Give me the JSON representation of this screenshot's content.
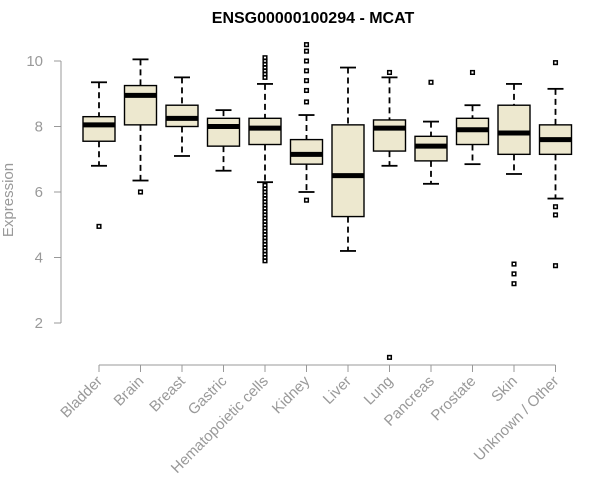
{
  "chart_data": {
    "type": "boxplot",
    "title": "ENSG00000100294 - MCAT",
    "xlabel": "",
    "ylabel": "Expression",
    "ylim": [
      0.6,
      11.0
    ],
    "yticks": [
      2,
      4,
      6,
      8,
      10
    ],
    "box_color": "#ede8cf",
    "categories": [
      "Bladder",
      "Brain",
      "Breast",
      "Gastric",
      "Hematopoietic cells",
      "Kidney",
      "Liver",
      "Lung",
      "Pancreas",
      "Prostate",
      "Skin",
      "Unknown / Other"
    ],
    "boxes": [
      {
        "name": "Bladder",
        "whisker_low": 6.8,
        "q1": 7.55,
        "median": 8.05,
        "q3": 8.3,
        "whisker_high": 9.35,
        "outliers": [
          4.95
        ]
      },
      {
        "name": "Brain",
        "whisker_low": 6.35,
        "q1": 8.05,
        "median": 8.95,
        "q3": 9.25,
        "whisker_high": 10.05,
        "outliers": [
          6.0
        ]
      },
      {
        "name": "Breast",
        "whisker_low": 7.1,
        "q1": 8.0,
        "median": 8.25,
        "q3": 8.65,
        "whisker_high": 9.5,
        "outliers": []
      },
      {
        "name": "Gastric",
        "whisker_low": 6.65,
        "q1": 7.4,
        "median": 8.0,
        "q3": 8.25,
        "whisker_high": 8.5,
        "outliers": []
      },
      {
        "name": "Hematopoietic cells",
        "whisker_low": 6.3,
        "q1": 7.45,
        "median": 7.95,
        "q3": 8.25,
        "whisker_high": 9.3,
        "outliers": [
          9.5,
          9.6,
          9.7,
          9.8,
          9.9,
          10.0,
          10.1,
          6.2,
          6.1,
          6.0,
          5.9,
          5.8,
          5.7,
          5.6,
          5.5,
          5.4,
          5.3,
          5.2,
          5.1,
          5.0,
          4.9,
          4.8,
          4.7,
          4.6,
          4.5,
          4.4,
          4.3,
          4.2,
          4.1,
          4.0,
          3.9
        ]
      },
      {
        "name": "Kidney",
        "whisker_low": 6.0,
        "q1": 6.85,
        "median": 7.15,
        "q3": 7.6,
        "whisker_high": 8.35,
        "outliers": [
          10.5,
          10.3,
          10.0,
          9.7,
          9.4,
          9.1,
          8.75,
          5.75
        ]
      },
      {
        "name": "Liver",
        "whisker_low": 4.2,
        "q1": 5.25,
        "median": 6.5,
        "q3": 8.05,
        "whisker_high": 9.8,
        "outliers": []
      },
      {
        "name": "Lung",
        "whisker_low": 6.8,
        "q1": 7.25,
        "median": 7.95,
        "q3": 8.2,
        "whisker_high": 9.5,
        "outliers": [
          9.65,
          0.95
        ]
      },
      {
        "name": "Pancreas",
        "whisker_low": 6.25,
        "q1": 6.95,
        "median": 7.4,
        "q3": 7.7,
        "whisker_high": 8.15,
        "outliers": [
          9.35
        ]
      },
      {
        "name": "Prostate",
        "whisker_low": 6.85,
        "q1": 7.45,
        "median": 7.9,
        "q3": 8.25,
        "whisker_high": 8.65,
        "outliers": [
          9.65
        ]
      },
      {
        "name": "Skin",
        "whisker_low": 6.55,
        "q1": 7.15,
        "median": 7.8,
        "q3": 8.65,
        "whisker_high": 9.3,
        "outliers": [
          3.8,
          3.5,
          3.2
        ]
      },
      {
        "name": "Unknown / Other",
        "whisker_low": 5.8,
        "q1": 7.15,
        "median": 7.6,
        "q3": 8.05,
        "whisker_high": 9.15,
        "outliers": [
          9.95,
          5.55,
          5.3,
          3.75
        ]
      }
    ]
  }
}
